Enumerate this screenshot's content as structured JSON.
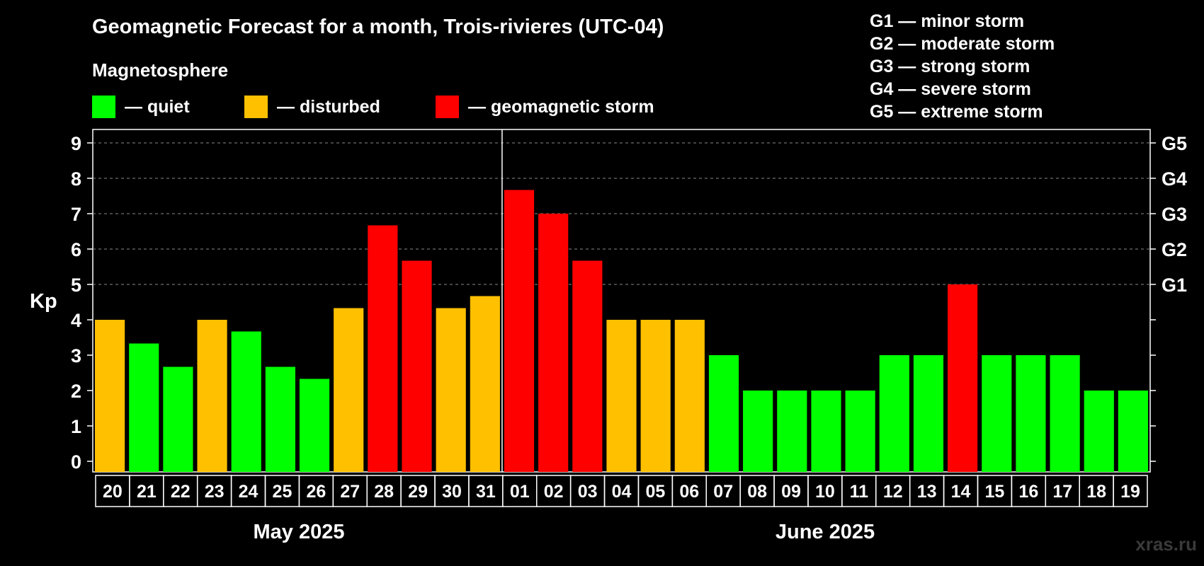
{
  "title": "Geomagnetic Forecast for a month, Trois-rivieres (UTC-04)",
  "subtitle": "Magnetosphere",
  "legend": [
    {
      "label": "— quiet",
      "color": "#00ff00"
    },
    {
      "label": "— disturbed",
      "color": "#ffc000"
    },
    {
      "label": "— geomagnetic storm",
      "color": "#ff0000"
    }
  ],
  "g_scale": [
    "G1 — minor storm",
    "G2 — moderate storm",
    "G3 — strong storm",
    "G4 — severe storm",
    "G5 — extreme storm"
  ],
  "months": [
    "May 2025",
    "June 2025"
  ],
  "watermark": "xras.ru",
  "chart_data": {
    "type": "bar",
    "ylabel": "Kp",
    "ylim": [
      0,
      9
    ],
    "yticks": [
      0,
      1,
      2,
      3,
      4,
      5,
      6,
      7,
      8,
      9
    ],
    "right_axis": [
      {
        "value": 5,
        "label": "G1"
      },
      {
        "value": 6,
        "label": "G2"
      },
      {
        "value": 7,
        "label": "G3"
      },
      {
        "value": 8,
        "label": "G4"
      },
      {
        "value": 9,
        "label": "G5"
      }
    ],
    "gridlines_at": [
      5,
      6,
      7,
      8,
      9
    ],
    "month_divider_after_index": 11,
    "categories": [
      "20",
      "21",
      "22",
      "23",
      "24",
      "25",
      "26",
      "27",
      "28",
      "29",
      "30",
      "31",
      "01",
      "02",
      "03",
      "04",
      "05",
      "06",
      "07",
      "08",
      "09",
      "10",
      "11",
      "12",
      "13",
      "14",
      "15",
      "16",
      "17",
      "18",
      "19"
    ],
    "values": [
      4,
      3.33,
      2.67,
      4,
      3.67,
      2.67,
      2.33,
      4.33,
      6.67,
      5.67,
      4.33,
      4.67,
      7.67,
      7,
      5.67,
      4,
      4,
      4,
      3,
      2,
      2,
      2,
      2,
      3,
      3,
      5,
      3,
      3,
      3,
      2,
      2
    ],
    "levels": [
      "disturbed",
      "quiet",
      "quiet",
      "disturbed",
      "quiet",
      "quiet",
      "quiet",
      "disturbed",
      "storm",
      "storm",
      "disturbed",
      "disturbed",
      "storm",
      "storm",
      "storm",
      "disturbed",
      "disturbed",
      "disturbed",
      "quiet",
      "quiet",
      "quiet",
      "quiet",
      "quiet",
      "quiet",
      "quiet",
      "storm",
      "quiet",
      "quiet",
      "quiet",
      "quiet",
      "quiet"
    ],
    "level_colors": {
      "quiet": "#00ff00",
      "disturbed": "#ffc000",
      "storm": "#ff0000"
    }
  }
}
